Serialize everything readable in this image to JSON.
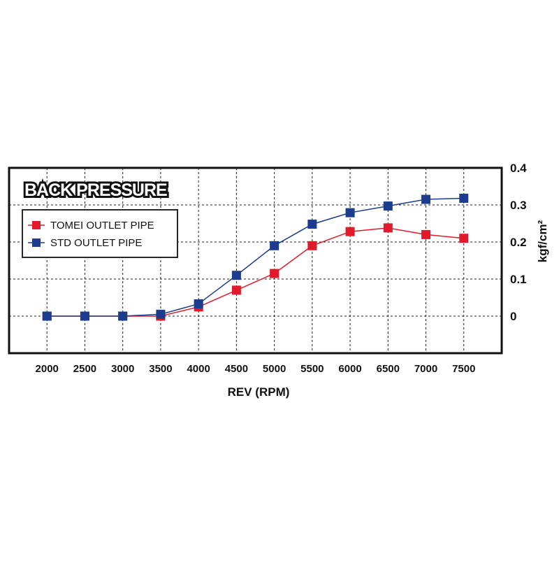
{
  "chart_data": {
    "type": "line",
    "title": "BACK PRESSURE",
    "xlabel": "REV (RPM)",
    "ylabel": "kgf/cm²",
    "x": [
      2000,
      2500,
      3000,
      3500,
      4000,
      4500,
      5000,
      5500,
      6000,
      6500,
      7000,
      7500
    ],
    "xlim": [
      1500,
      8000
    ],
    "ylim": [
      -0.1,
      0.4
    ],
    "y_ticks": [
      {
        "value": 0.4,
        "label": "0.4"
      },
      {
        "value": 0.3,
        "label": "0.3"
      },
      {
        "value": 0.2,
        "label": "0.2"
      },
      {
        "value": 0.1,
        "label": "0.1"
      },
      {
        "value": 0,
        "label": "0"
      }
    ],
    "grid": true,
    "legend": "top-left",
    "series": [
      {
        "name": "TOMEI OUTLET PIPE",
        "color": "#e0192b",
        "values": [
          0,
          0,
          0,
          0,
          0.025,
          0.07,
          0.115,
          0.19,
          0.228,
          0.238,
          0.22,
          0.21
        ]
      },
      {
        "name": "STD OUTLET PIPE",
        "color": "#1b3c8f",
        "values": [
          0,
          0,
          0,
          0.005,
          0.033,
          0.11,
          0.19,
          0.248,
          0.279,
          0.297,
          0.315,
          0.318
        ]
      }
    ]
  }
}
